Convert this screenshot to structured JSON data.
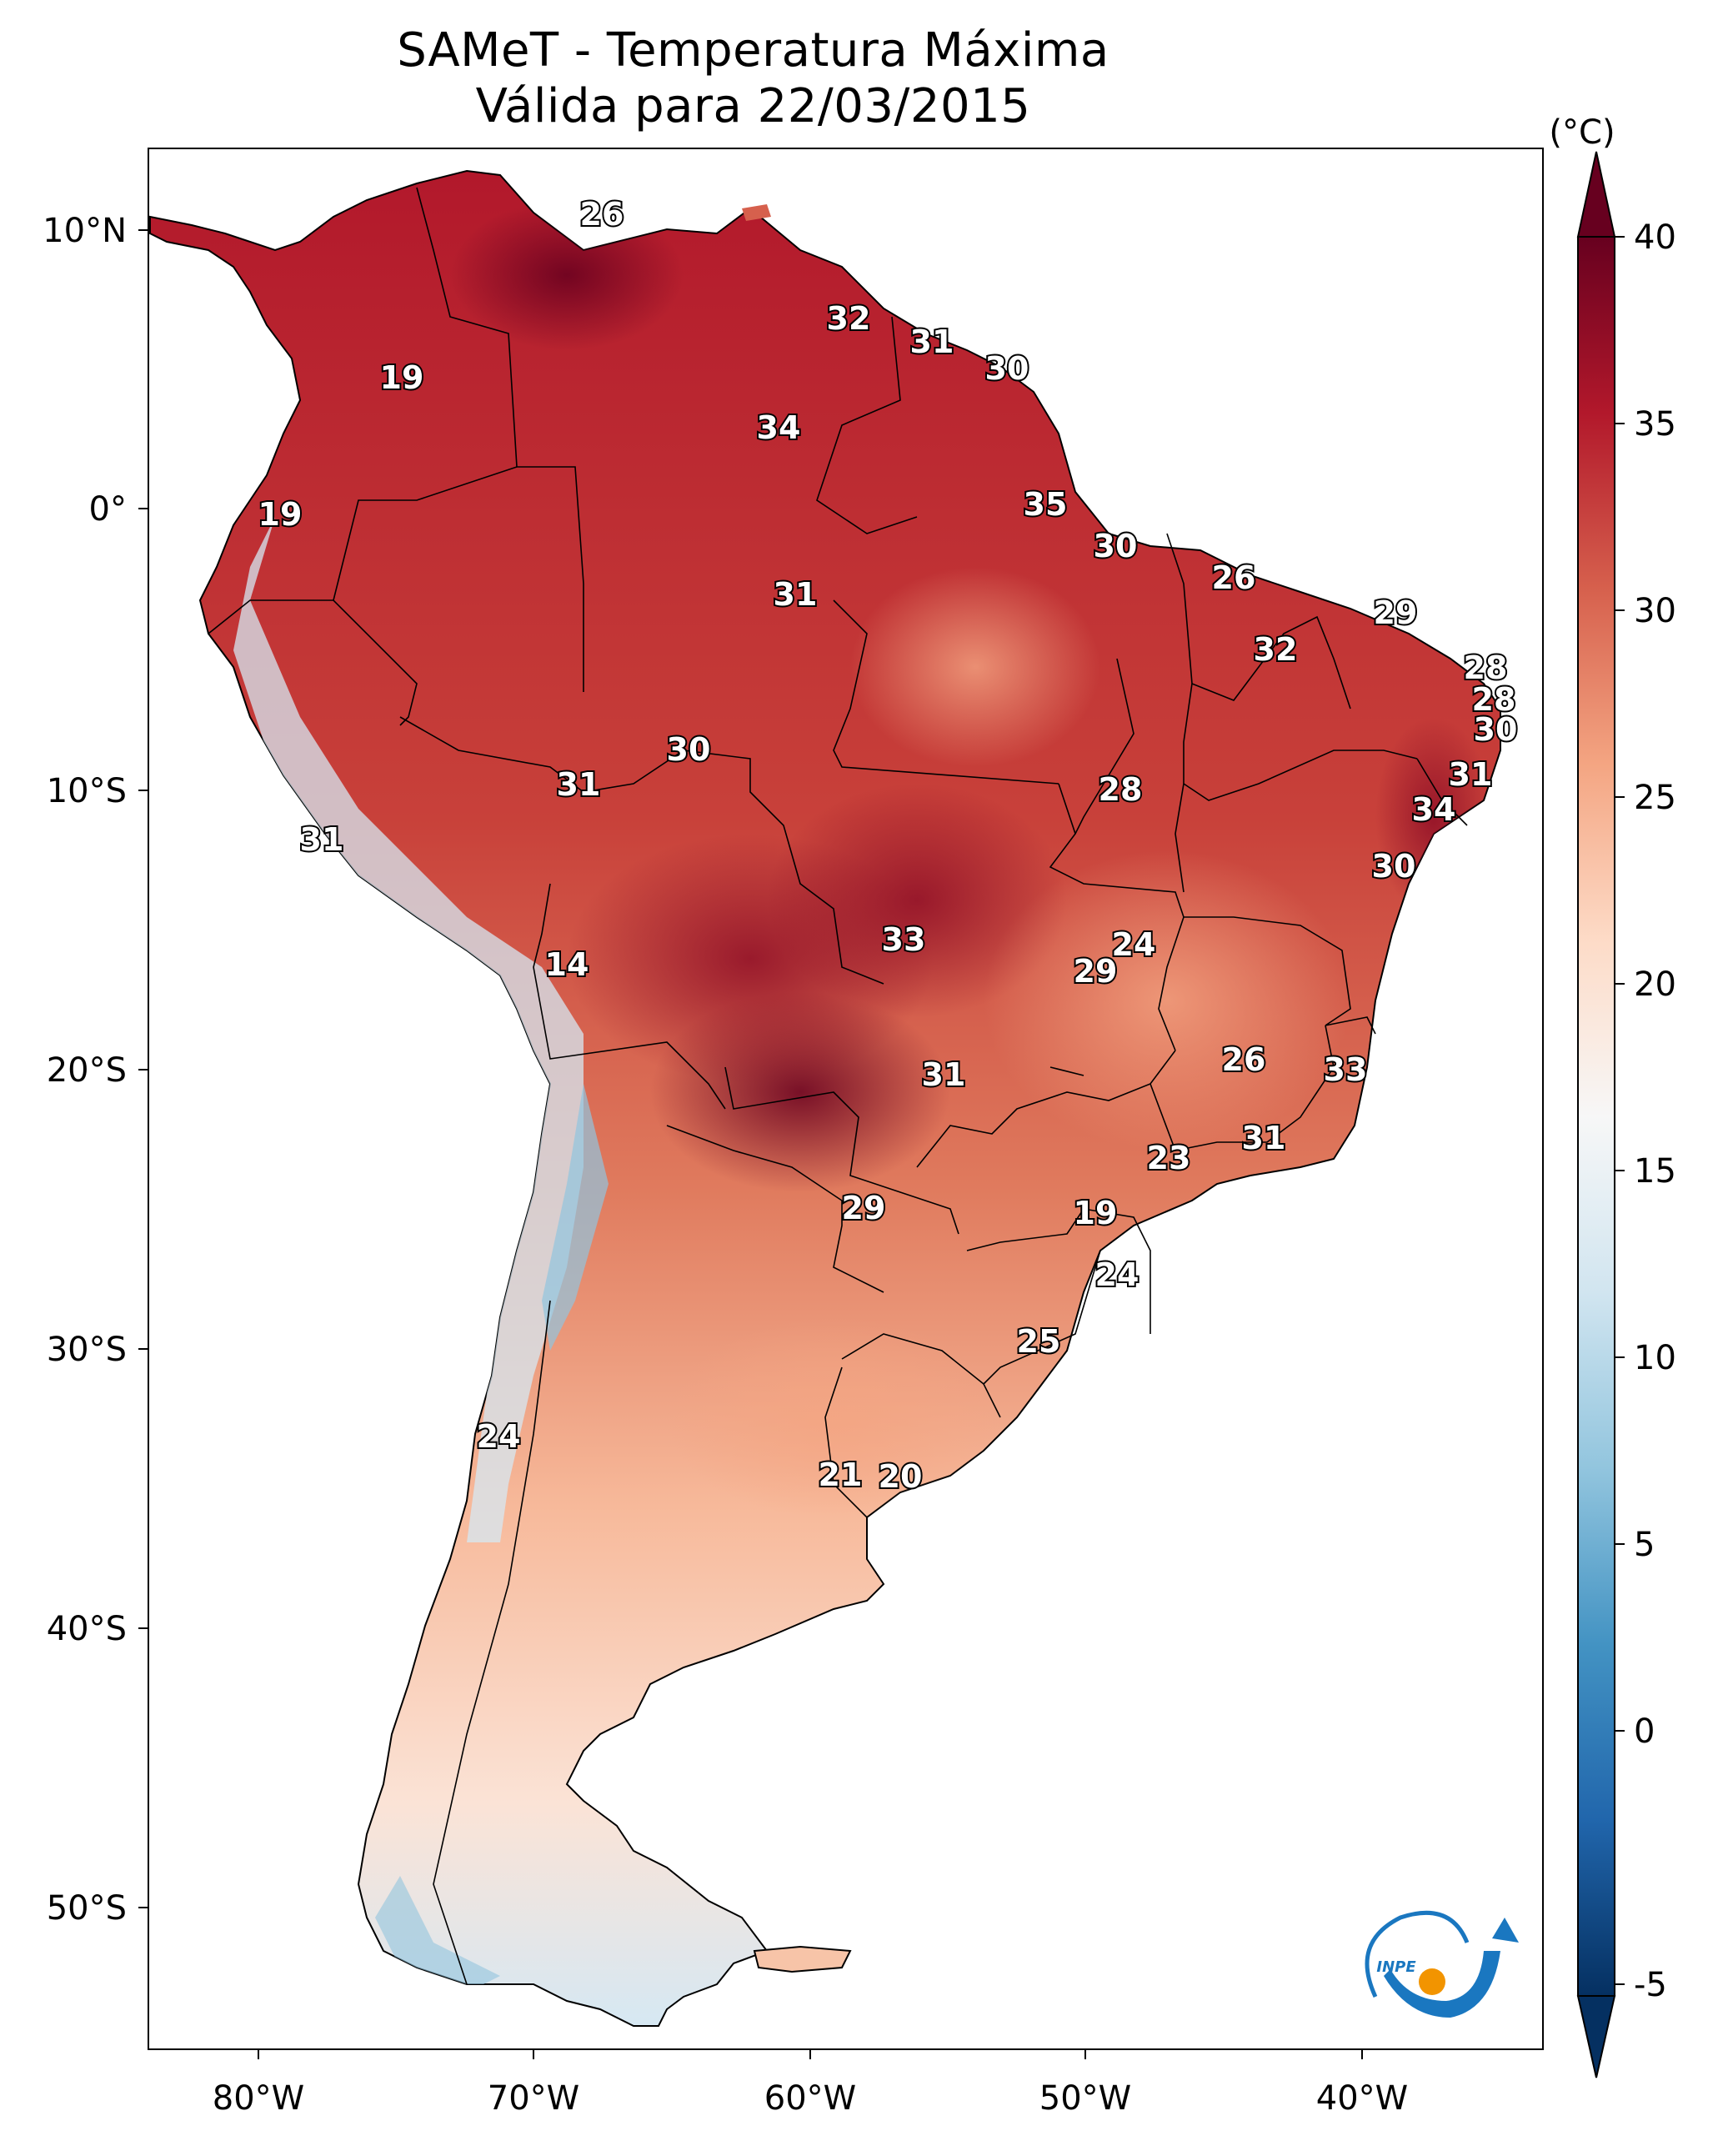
{
  "title": {
    "line1": "SAMeT - Temperatura Máxima",
    "line2": "Válida para 22/03/2015"
  },
  "map": {
    "lon_ticks": [
      "80°W",
      "70°W",
      "60°W",
      "50°W",
      "40°W"
    ],
    "lat_ticks": [
      "10°N",
      "0°",
      "10°S",
      "20°S",
      "30°S",
      "40°S",
      "50°S"
    ]
  },
  "colorbar": {
    "unit": "(°C)",
    "ticks": [
      "40",
      "35",
      "30",
      "25",
      "20",
      "15",
      "10",
      "5",
      "0",
      "-5"
    ],
    "range": [
      -5,
      40
    ],
    "colors": [
      "#053061",
      "#2166ac",
      "#4393c3",
      "#92c5de",
      "#d1e5f0",
      "#f7f7f7",
      "#fddbc7",
      "#f4a582",
      "#d6604d",
      "#b2182b",
      "#67001f"
    ]
  },
  "logo": {
    "text": "INPE",
    "colors": {
      "blue": "#1a77c0",
      "orange": "#f29400"
    }
  },
  "station_values": [
    {
      "id": "s1",
      "value": "26"
    },
    {
      "id": "s2",
      "value": "32"
    },
    {
      "id": "s3",
      "value": "31"
    },
    {
      "id": "s4",
      "value": "30"
    },
    {
      "id": "s5",
      "value": "19"
    },
    {
      "id": "s6",
      "value": "34"
    },
    {
      "id": "s7",
      "value": "35"
    },
    {
      "id": "s8",
      "value": "19"
    },
    {
      "id": "s9",
      "value": "30"
    },
    {
      "id": "s10",
      "value": "26"
    },
    {
      "id": "s11",
      "value": "31"
    },
    {
      "id": "s12",
      "value": "29"
    },
    {
      "id": "s13",
      "value": "32"
    },
    {
      "id": "s14",
      "value": "28"
    },
    {
      "id": "s15",
      "value": "28"
    },
    {
      "id": "s16",
      "value": "30"
    },
    {
      "id": "s17",
      "value": "30"
    },
    {
      "id": "s18",
      "value": "31"
    },
    {
      "id": "s19",
      "value": "31"
    },
    {
      "id": "s20",
      "value": "28"
    },
    {
      "id": "s21",
      "value": "34"
    },
    {
      "id": "s22",
      "value": "31"
    },
    {
      "id": "s23",
      "value": "30"
    },
    {
      "id": "s24",
      "value": "24"
    },
    {
      "id": "s25",
      "value": "29"
    },
    {
      "id": "s26",
      "value": "33"
    },
    {
      "id": "s27",
      "value": "14"
    },
    {
      "id": "s28",
      "value": "26"
    },
    {
      "id": "s29",
      "value": "33"
    },
    {
      "id": "s30",
      "value": "31"
    },
    {
      "id": "s31",
      "value": "31"
    },
    {
      "id": "s32",
      "value": "23"
    },
    {
      "id": "s33",
      "value": "29"
    },
    {
      "id": "s34",
      "value": "19"
    },
    {
      "id": "s35",
      "value": "24"
    },
    {
      "id": "s36",
      "value": "25"
    },
    {
      "id": "s37",
      "value": "24"
    },
    {
      "id": "s38",
      "value": "21"
    },
    {
      "id": "s39",
      "value": "20"
    }
  ]
}
